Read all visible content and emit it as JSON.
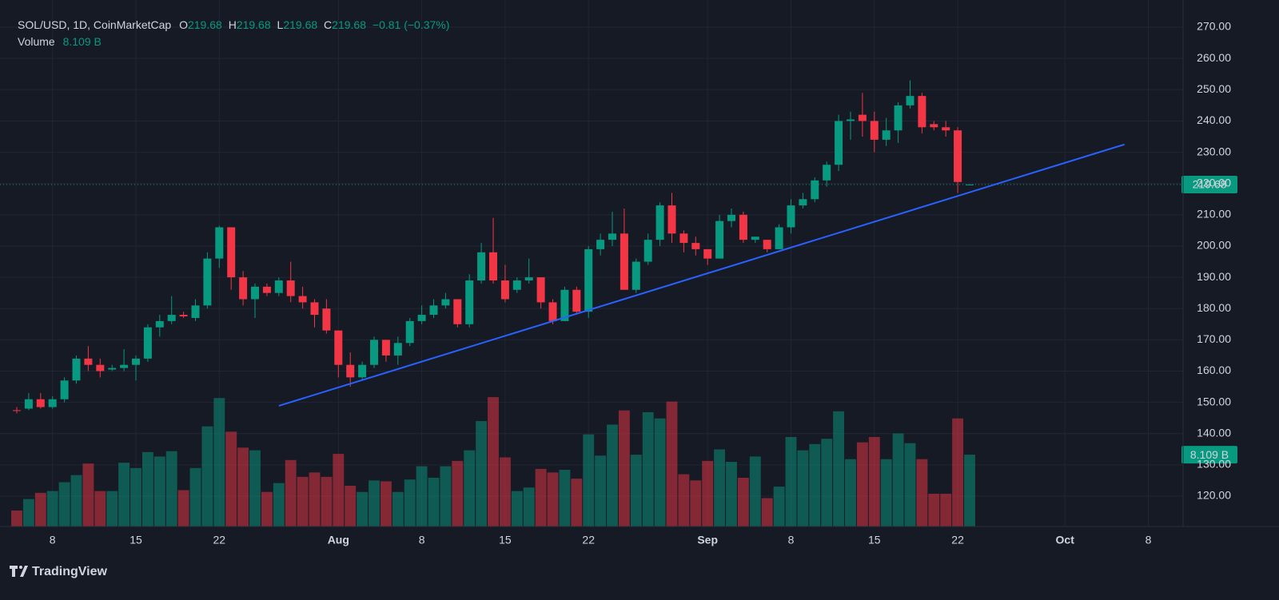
{
  "chart_data": {
    "type": "candlestick",
    "symbol": "SOL/USD, 1D, CoinMarketCap",
    "ohlc_letters": [
      "O",
      "H",
      "L",
      "C"
    ],
    "change_text": "−0.81 (−0.37%)",
    "volume_name": "Volume",
    "volume_last_label": "8.109 B",
    "brand": "TradingView",
    "up_color": "#089981",
    "down_color": "#f23645",
    "open": [
      147.5,
      148,
      151,
      148.5,
      151,
      157,
      164,
      162,
      160.5,
      161,
      162,
      164,
      174,
      176,
      178,
      177,
      181,
      196,
      206,
      190,
      183,
      187,
      185,
      189,
      184,
      182,
      180,
      173,
      162,
      158,
      162,
      170,
      165,
      169,
      176,
      178,
      181,
      183,
      175,
      189,
      198,
      189,
      186,
      189,
      190,
      182,
      176,
      186,
      179,
      199,
      202,
      204,
      186,
      195,
      202,
      213,
      204,
      201,
      199,
      196,
      208,
      210,
      202,
      202,
      199,
      206,
      213,
      215,
      221,
      226,
      240,
      242,
      240,
      234,
      237,
      245,
      248,
      239,
      238,
      237,
      219.68
    ],
    "high": [
      148.5,
      153,
      153,
      152,
      158,
      165,
      168,
      164,
      162,
      167,
      165,
      175,
      178,
      184,
      179,
      183,
      198,
      206.5,
      206,
      192,
      188,
      188,
      190,
      195,
      187,
      183,
      183,
      173,
      166,
      163,
      171,
      170,
      171,
      177,
      181,
      183,
      185,
      183,
      191,
      201,
      209,
      194,
      190,
      196,
      190,
      183,
      187,
      187,
      200,
      204,
      211,
      212,
      196,
      204,
      214,
      217,
      205,
      203,
      199,
      210,
      212,
      211,
      203,
      202,
      207,
      215,
      217,
      222,
      227,
      242,
      243,
      249,
      243,
      241,
      246,
      253,
      249,
      240,
      240,
      238,
      219.68
    ],
    "low": [
      146.5,
      147.5,
      148,
      148,
      150,
      156,
      160,
      158,
      160,
      160,
      157,
      163,
      171,
      175,
      177,
      176,
      180,
      193,
      186,
      181,
      177,
      184,
      184,
      182,
      180,
      174,
      172,
      158,
      155,
      157,
      161,
      163,
      162,
      168,
      175,
      177,
      180,
      174,
      174,
      188,
      188,
      182,
      185,
      188,
      180,
      175,
      176,
      178,
      177,
      197,
      200,
      186,
      185,
      194,
      200,
      201,
      198,
      197,
      194,
      196,
      206,
      201,
      201,
      198,
      199,
      204,
      212,
      214,
      219,
      224,
      234,
      235,
      230,
      232,
      233,
      244,
      236,
      237,
      235,
      217,
      219.68
    ],
    "close": [
      147.3,
      151,
      148.5,
      151,
      157,
      164,
      162,
      160,
      161,
      162,
      164,
      174,
      176,
      178,
      177.5,
      181,
      196,
      206,
      190,
      183,
      187,
      185,
      189,
      184,
      182,
      178,
      173,
      162,
      158,
      162,
      170,
      165,
      169,
      176,
      178,
      181,
      183,
      175,
      189,
      198,
      189,
      183,
      189,
      190,
      182,
      176,
      186,
      179,
      199,
      202,
      204,
      186,
      195,
      202,
      213,
      204,
      201,
      199,
      196,
      208,
      210,
      202,
      203,
      199,
      206,
      213,
      215,
      221,
      226,
      240,
      240.5,
      240,
      234,
      237,
      245,
      248,
      238,
      238,
      237,
      220.49,
      219.68
    ],
    "volume": [
      1.8,
      3.1,
      3.8,
      4.0,
      5.0,
      5.8,
      7.1,
      4.0,
      4.0,
      7.2,
      6.6,
      8.4,
      7.9,
      8.5,
      4.1,
      6.6,
      11.3,
      14.5,
      10.7,
      8.9,
      8.6,
      3.9,
      4.9,
      7.5,
      5.6,
      6.1,
      5.6,
      8.2,
      4.6,
      3.9,
      5.2,
      5.1,
      3.9,
      5.3,
      6.8,
      5.5,
      6.8,
      7.4,
      8.6,
      11.9,
      14.6,
      7.8,
      4.0,
      4.4,
      6.5,
      6.1,
      6.4,
      5.4,
      10.4,
      8.0,
      11.5,
      13.1,
      8.1,
      12.9,
      12.2,
      14.1,
      5.9,
      5.2,
      7.4,
      8.7,
      7.3,
      5.5,
      7.9,
      3.2,
      4.5,
      10.1,
      8.6,
      9.3,
      9.9,
      13.0,
      7.6,
      9.5,
      10.1,
      7.6,
      10.5,
      9.4,
      7.6,
      3.7,
      3.7,
      12.2,
      8.109
    ],
    "volume_lim": [
      0,
      16.5
    ],
    "xlim": [
      -1.41,
      97.92
    ],
    "xticks": [
      {
        "value": 3,
        "label": "8"
      },
      {
        "value": 10,
        "label": "15"
      },
      {
        "value": 17,
        "label": "22"
      },
      {
        "value": 27,
        "label": "Aug"
      },
      {
        "value": 34,
        "label": "8"
      },
      {
        "value": 41,
        "label": "15"
      },
      {
        "value": 48,
        "label": "22"
      },
      {
        "value": 58,
        "label": "Sep"
      },
      {
        "value": 65,
        "label": "8"
      },
      {
        "value": 72,
        "label": "15"
      },
      {
        "value": 79,
        "label": "22"
      },
      {
        "value": 88,
        "label": "Oct"
      },
      {
        "value": 95,
        "label": "8"
      }
    ],
    "ylim": [
      110.3,
      278.7
    ],
    "yticks": [
      {
        "value": 120,
        "label": "120.00"
      },
      {
        "value": 130,
        "label": "130.00"
      },
      {
        "value": 140,
        "label": "140.00"
      },
      {
        "value": 150,
        "label": "150.00"
      },
      {
        "value": 160,
        "label": "160.00"
      },
      {
        "value": 170,
        "label": "170.00"
      },
      {
        "value": 180,
        "label": "180.00"
      },
      {
        "value": 190,
        "label": "190.00"
      },
      {
        "value": 200,
        "label": "200.00"
      },
      {
        "value": 210,
        "label": "210.00"
      },
      {
        "value": 220,
        "label": "220.00"
      },
      {
        "value": 230,
        "label": "230.00"
      },
      {
        "value": 240,
        "label": "240.00"
      },
      {
        "value": 250,
        "label": "250.00"
      },
      {
        "value": 260,
        "label": "260.00"
      },
      {
        "value": 270,
        "label": "270.00"
      }
    ],
    "grid": true,
    "trendline": {
      "x": [
        22,
        93
      ],
      "y": [
        148.9,
        232.5
      ],
      "color": "#2962ff"
    }
  }
}
